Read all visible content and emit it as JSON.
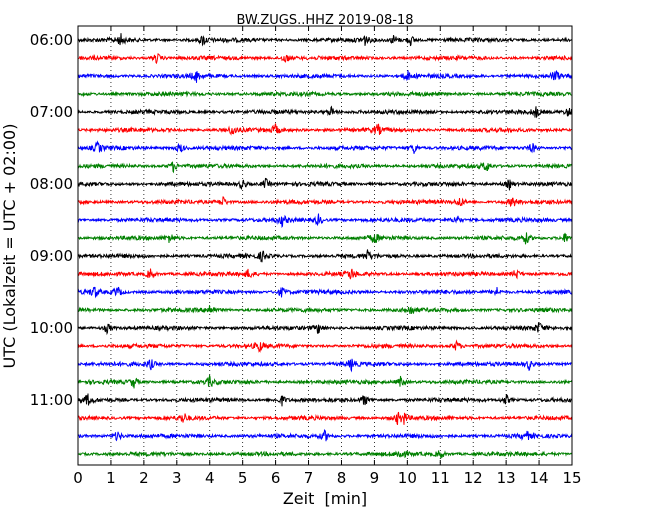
{
  "chart_data": {
    "type": "line",
    "title": "BW.ZUGS..HHZ 2019-08-18",
    "xlabel": "Zeit  [min]",
    "ylabel": "UTC (Lokalzeit = UTC + 02:00)",
    "xlim": [
      0,
      15
    ],
    "x_ticks": [
      "0",
      "1",
      "2",
      "3",
      "4",
      "5",
      "6",
      "7",
      "8",
      "9",
      "10",
      "11",
      "12",
      "13",
      "14",
      "15"
    ],
    "y_ticks": [
      "06:00",
      "07:00",
      "08:00",
      "09:00",
      "10:00",
      "11:00"
    ],
    "grid": "vertical-dotted",
    "trace_colors": [
      "#000000",
      "#ff0000",
      "#0000ff",
      "#008000"
    ],
    "trace_start_times": [
      "06:00",
      "06:15",
      "06:30",
      "06:45",
      "07:00",
      "07:15",
      "07:30",
      "07:45",
      "08:00",
      "08:15",
      "08:30",
      "08:45",
      "09:00",
      "09:15",
      "09:30",
      "09:45",
      "10:00",
      "10:15",
      "10:30",
      "10:45",
      "11:00",
      "11:15",
      "11:30",
      "11:45"
    ],
    "event_minutes": [
      [
        1.3,
        3.8,
        8.7,
        9.6,
        10.1
      ],
      [
        2.4,
        6.3
      ],
      [
        3.6,
        10.0,
        14.5
      ],
      [],
      [
        7.7,
        13.9,
        14.9
      ],
      [
        4.7,
        6.0,
        9.1
      ],
      [
        0.6,
        3.1,
        10.2,
        13.8
      ],
      [
        2.9,
        12.4
      ],
      [
        5.0,
        5.7,
        13.1
      ],
      [
        4.4,
        11.6,
        13.2
      ],
      [
        6.2,
        7.3,
        11.5
      ],
      [
        2.8,
        9.0,
        13.6,
        14.8
      ],
      [
        5.6,
        8.8
      ],
      [
        2.2,
        5.2,
        8.3,
        13.3
      ],
      [
        0.5,
        1.2,
        6.2,
        12.7
      ],
      [
        4.0,
        10.1
      ],
      [
        0.9,
        7.3,
        14.0
      ],
      [
        5.5,
        11.5
      ],
      [
        2.2,
        8.3,
        13.7
      ],
      [
        1.7,
        4.0,
        9.8
      ],
      [
        0.3,
        6.2,
        8.7,
        13.0
      ],
      [
        3.2,
        9.7,
        9.9
      ],
      [
        1.2,
        7.5,
        13.6
      ],
      [
        9.8,
        11.0
      ]
    ]
  }
}
